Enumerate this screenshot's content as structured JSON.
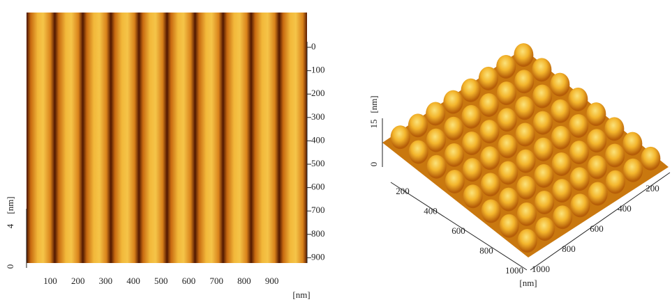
{
  "left_panel": {
    "z_ticks": [
      0,
      4
    ],
    "z_unit": "[nm]",
    "y_ticks": [
      0,
      100,
      200,
      300,
      400,
      500,
      600,
      700,
      800,
      900
    ],
    "x_ticks": [
      100,
      200,
      300,
      400,
      500,
      600,
      700,
      800,
      900
    ],
    "x_unit": "[nm]"
  },
  "right_panel": {
    "z_ticks": [
      0,
      15
    ],
    "z_unit": "[nm]",
    "left_ticks": [
      200,
      400,
      600,
      800,
      1000
    ],
    "right_ticks": [
      200,
      400,
      600,
      800,
      1000
    ],
    "unit": "[nm]"
  }
}
